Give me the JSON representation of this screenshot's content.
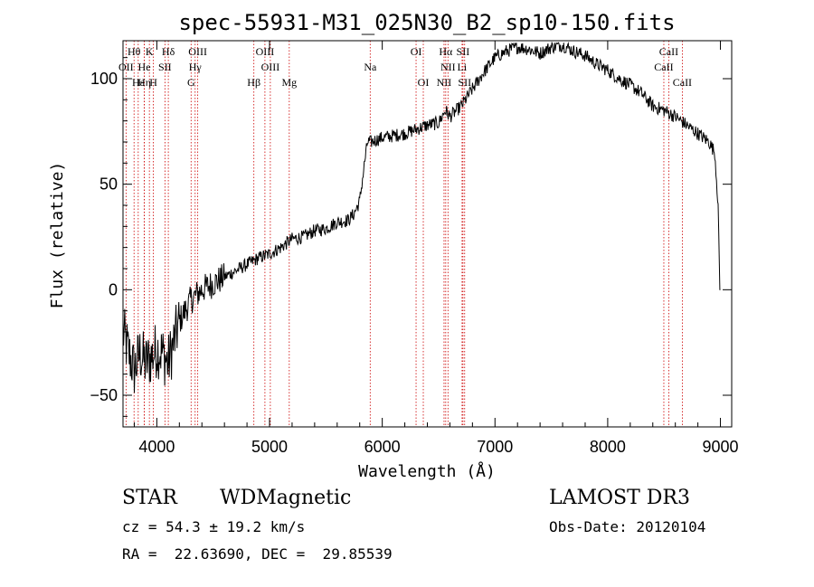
{
  "chart_data": {
    "type": "line",
    "title": "spec-55931-M31_025N30_B2_sp10-150.fits",
    "xlabel": "Wavelength (Å)",
    "ylabel": "Flux (relative)",
    "xlim": [
      3700,
      9100
    ],
    "ylim": [
      -65,
      118
    ],
    "xticks": [
      4000,
      5000,
      6000,
      7000,
      8000,
      9000
    ],
    "yticks": [
      -50,
      0,
      50,
      100
    ],
    "xtick_labels": [
      "4000",
      "5000",
      "6000",
      "7000",
      "8000",
      "9000"
    ],
    "ytick_labels": [
      "−50",
      "0",
      "50",
      "100"
    ],
    "series": [
      {
        "name": "flux",
        "x": [
          3700,
          3750,
          3800,
          3850,
          3900,
          3950,
          4000,
          4050,
          4100,
          4150,
          4200,
          4300,
          4400,
          4500,
          4600,
          4700,
          4800,
          4900,
          5000,
          5100,
          5200,
          5300,
          5400,
          5500,
          5600,
          5700,
          5750,
          5800,
          5850,
          5870,
          5900,
          6000,
          6100,
          6200,
          6300,
          6400,
          6500,
          6560,
          6600,
          6700,
          6800,
          6900,
          7000,
          7100,
          7200,
          7300,
          7400,
          7500,
          7600,
          7700,
          7800,
          7900,
          8000,
          8100,
          8200,
          8300,
          8400,
          8500,
          8600,
          8700,
          8800,
          8900,
          8950,
          8980,
          8995,
          9000
        ],
        "y": [
          -20,
          -30,
          -38,
          -30,
          -35,
          -32,
          -28,
          -30,
          -35,
          -25,
          -15,
          -5,
          0,
          3,
          6,
          9,
          12,
          15,
          17,
          20,
          24,
          25,
          28,
          29,
          32,
          33,
          36,
          42,
          63,
          70,
          70,
          72,
          73,
          74,
          76,
          78,
          79,
          85,
          82,
          87,
          95,
          103,
          110,
          113,
          115,
          114,
          112,
          115,
          116,
          113,
          111,
          107,
          104,
          100,
          97,
          93,
          87,
          85,
          82,
          78,
          74,
          70,
          65,
          40,
          0,
          0
        ],
        "noise": "high below 4500 Å, moderate elsewhere"
      }
    ],
    "emission_lines": [
      {
        "label": "Hθ",
        "wavelength": 3798,
        "row": 1
      },
      {
        "label": "K",
        "wavelength": 3934,
        "row": 1
      },
      {
        "label": "Hδ",
        "wavelength": 4102,
        "row": 1
      },
      {
        "label": "OIII",
        "wavelength": 4363,
        "row": 1
      },
      {
        "label": "OIII",
        "wavelength": 4959,
        "row": 1
      },
      {
        "label": "OI",
        "wavelength": 6300,
        "row": 1
      },
      {
        "label": "Hα",
        "wavelength": 6563,
        "row": 1
      },
      {
        "label": "SII",
        "wavelength": 6716,
        "row": 1
      },
      {
        "label": "CaII",
        "wavelength": 8542,
        "row": 1
      },
      {
        "label": "OII",
        "wavelength": 3727,
        "row": 2
      },
      {
        "label": "He",
        "wavelength": 3889,
        "row": 2
      },
      {
        "label": "SII",
        "wavelength": 4072,
        "row": 2
      },
      {
        "label": "Hγ",
        "wavelength": 4340,
        "row": 2
      },
      {
        "label": "OIII",
        "wavelength": 5007,
        "row": 2
      },
      {
        "label": "NII",
        "wavelength": 6583,
        "row": 2
      },
      {
        "label": "Li",
        "wavelength": 6708,
        "row": 2
      },
      {
        "label": "CaII",
        "wavelength": 8498,
        "row": 2
      },
      {
        "label": "Na",
        "wavelength": 5893,
        "row": 2
      },
      {
        "label": "Hε",
        "wavelength": 3835,
        "row": 3
      },
      {
        "label": "Hη",
        "wavelength": 3889,
        "row": 3
      },
      {
        "label": "H",
        "wavelength": 3969,
        "row": 3
      },
      {
        "label": "G",
        "wavelength": 4304,
        "row": 3
      },
      {
        "label": "Hβ",
        "wavelength": 4861,
        "row": 3
      },
      {
        "label": "Mg",
        "wavelength": 5175,
        "row": 3
      },
      {
        "label": "OI",
        "wavelength": 6364,
        "row": 3
      },
      {
        "label": "NII",
        "wavelength": 6548,
        "row": 3
      },
      {
        "label": "SII",
        "wavelength": 6731,
        "row": 3
      },
      {
        "label": "CaII",
        "wavelength": 8662,
        "row": 3
      }
    ]
  },
  "info": {
    "object_class": "STAR",
    "subclass": "WDMagnetic",
    "survey": "LAMOST DR3",
    "cz": "cz = 54.3 ± 19.2 km/s",
    "obs_date": "Obs-Date: 20120104",
    "radec": "RA =  22.63690, DEC =  29.85539"
  },
  "colors": {
    "line": "#000000",
    "marker": "#cc0000"
  }
}
